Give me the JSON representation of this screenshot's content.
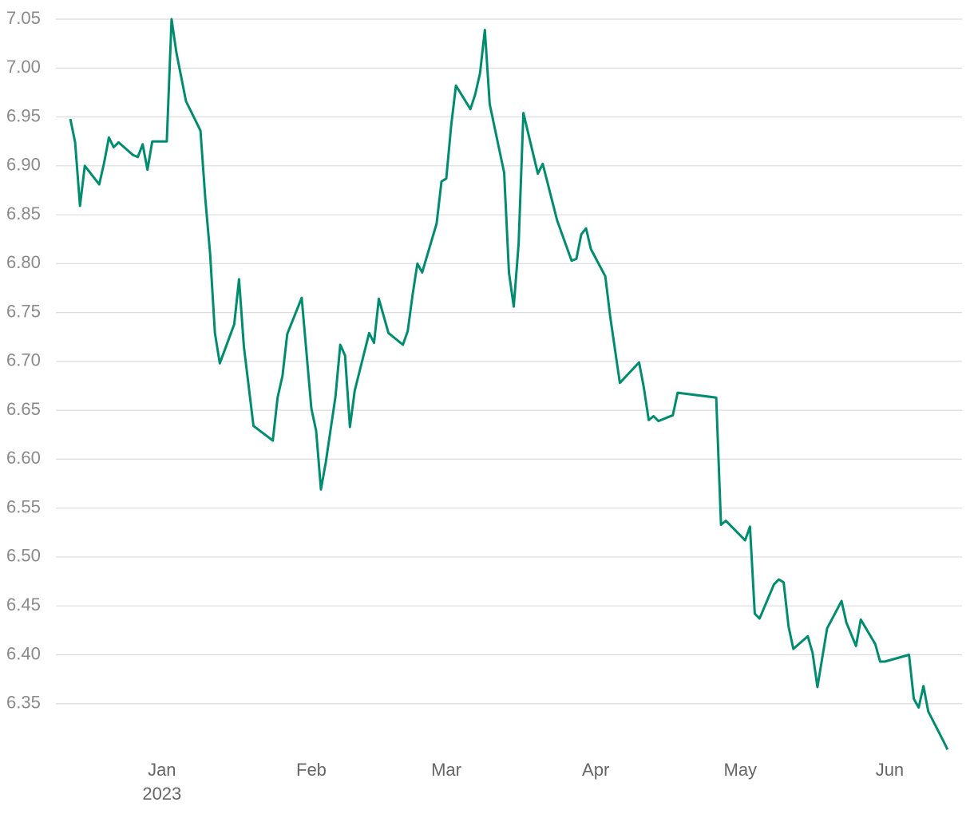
{
  "chart_data": {
    "type": "line",
    "color": "#008c6e",
    "grid": true,
    "x": [
      -19,
      -18,
      -17,
      -16,
      -13,
      -12,
      -11,
      -10,
      -9,
      -6,
      -5,
      -4,
      -3,
      -2,
      1,
      2,
      3,
      5,
      8,
      9,
      10,
      11,
      12,
      15,
      16,
      17,
      19,
      23,
      24,
      25,
      26,
      29,
      31,
      32,
      33,
      34,
      36,
      37,
      38,
      39,
      40,
      43,
      44,
      45,
      47,
      50,
      51,
      52,
      53,
      54,
      57,
      58,
      59,
      60,
      61,
      64,
      65,
      66,
      67,
      68,
      71,
      72,
      73,
      74,
      75,
      78,
      79,
      82,
      85,
      86,
      87,
      88,
      89,
      92,
      93,
      95,
      99,
      100,
      101,
      102,
      103,
      106,
      107,
      115,
      116,
      117,
      121,
      122,
      123,
      124,
      127,
      128,
      129,
      130,
      131,
      134,
      135,
      136,
      138,
      141,
      142,
      144,
      145,
      148,
      149,
      150,
      155,
      156,
      157,
      158,
      159,
      162,
      163
    ],
    "values": [
      6.948,
      6.924,
      6.859,
      6.9,
      6.881,
      6.903,
      6.929,
      6.919,
      6.924,
      6.911,
      6.909,
      6.922,
      6.896,
      6.925,
      6.925,
      7.05,
      7.016,
      6.966,
      6.936,
      6.866,
      6.81,
      6.729,
      6.698,
      6.738,
      6.784,
      6.715,
      6.634,
      6.619,
      6.663,
      6.685,
      6.728,
      6.765,
      6.652,
      6.629,
      6.569,
      6.597,
      6.664,
      6.717,
      6.706,
      6.633,
      6.67,
      6.729,
      6.719,
      6.764,
      6.729,
      6.717,
      6.731,
      6.768,
      6.8,
      6.791,
      6.841,
      6.884,
      6.887,
      6.941,
      6.982,
      6.958,
      6.973,
      6.995,
      7.039,
      6.963,
      6.893,
      6.791,
      6.756,
      6.82,
      6.954,
      6.892,
      6.902,
      6.844,
      6.803,
      6.805,
      6.83,
      6.836,
      6.815,
      6.787,
      6.746,
      6.678,
      6.699,
      6.673,
      6.64,
      6.644,
      6.639,
      6.645,
      6.668,
      6.663,
      6.533,
      6.537,
      6.517,
      6.531,
      6.442,
      6.437,
      6.472,
      6.477,
      6.474,
      6.429,
      6.406,
      6.419,
      6.402,
      6.367,
      6.427,
      6.455,
      6.433,
      6.409,
      6.436,
      6.411,
      6.393,
      6.393,
      6.4,
      6.355,
      6.346,
      6.368,
      6.342,
      6.313,
      6.303
    ],
    "xlim": [
      -22,
      166
    ],
    "xticks": [
      {
        "value": 0,
        "label": "Jan"
      },
      {
        "value": 31,
        "label": "Feb"
      },
      {
        "value": 59,
        "label": "Mar"
      },
      {
        "value": 90,
        "label": "Apr"
      },
      {
        "value": 120,
        "label": "May"
      },
      {
        "value": 151,
        "label": "Jun"
      }
    ],
    "x_year": "2023",
    "ylim": [
      6.3,
      7.05
    ],
    "yticks": [
      {
        "value": 6.35,
        "label": "6.35"
      },
      {
        "value": 6.4,
        "label": "6.40"
      },
      {
        "value": 6.45,
        "label": "6.45"
      },
      {
        "value": 6.5,
        "label": "6.50"
      },
      {
        "value": 6.55,
        "label": "6.55"
      },
      {
        "value": 6.6,
        "label": "6.60"
      },
      {
        "value": 6.65,
        "label": "6.65"
      },
      {
        "value": 6.7,
        "label": "6.70"
      },
      {
        "value": 6.75,
        "label": "6.75"
      },
      {
        "value": 6.8,
        "label": "6.80"
      },
      {
        "value": 6.85,
        "label": "6.85"
      },
      {
        "value": 6.9,
        "label": "6.90"
      },
      {
        "value": 6.95,
        "label": "6.95"
      },
      {
        "value": 7,
        "label": "7.00"
      },
      {
        "value": 7.05,
        "label": "7.05"
      }
    ]
  }
}
